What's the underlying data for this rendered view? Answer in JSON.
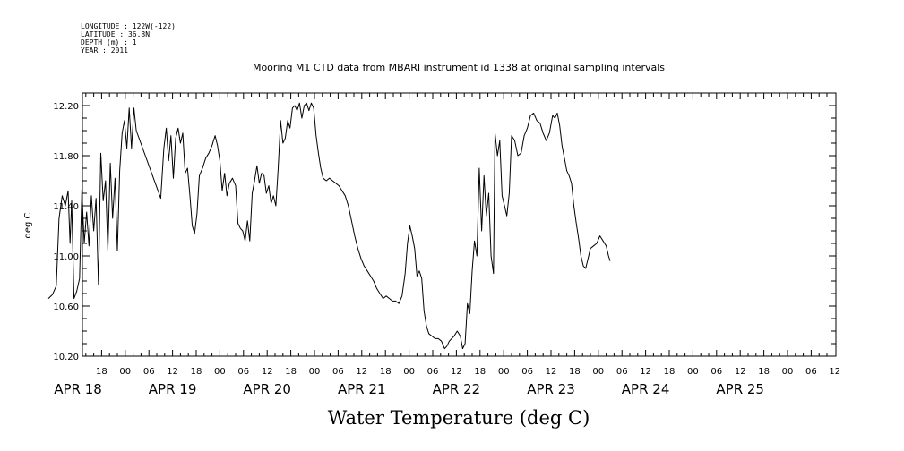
{
  "header_info": [
    "LONGITUDE : 122W(-122)",
    "LATITUDE : 36.8N",
    "DEPTH (m) : 1",
    "YEAR : 2011"
  ],
  "chart_data": {
    "type": "line",
    "title": "Mooring M1 CTD data from MBARI instrument id 1338 at original sampling intervals",
    "xlabel": "Water Temperature (deg C)",
    "ylabel": "deg C",
    "ylim": [
      10.2,
      12.3
    ],
    "yticks": [
      10.2,
      10.6,
      11.0,
      11.4,
      11.8,
      12.2
    ],
    "ytick_labels": [
      "10.20",
      "10.60",
      "11.00",
      "11.40",
      "11.80",
      "12.20"
    ],
    "x_unit": "hours since APR 18 00:00",
    "xlim": [
      -19.5,
      172.5
    ],
    "hour_ticks": [
      {
        "x": -6,
        "label": "18"
      },
      {
        "x": 0,
        "label": "00"
      },
      {
        "x": 6,
        "label": "06"
      },
      {
        "x": 12,
        "label": "12"
      },
      {
        "x": 18,
        "label": "18"
      },
      {
        "x": 24,
        "label": "00"
      },
      {
        "x": 30,
        "label": "06"
      },
      {
        "x": 36,
        "label": "12"
      },
      {
        "x": 42,
        "label": "18"
      },
      {
        "x": 48,
        "label": "00"
      },
      {
        "x": 54,
        "label": "06"
      },
      {
        "x": 60,
        "label": "12"
      },
      {
        "x": 66,
        "label": "18"
      },
      {
        "x": 72,
        "label": "00"
      },
      {
        "x": 78,
        "label": "06"
      },
      {
        "x": 84,
        "label": "12"
      },
      {
        "x": 90,
        "label": "18"
      },
      {
        "x": 96,
        "label": "00"
      },
      {
        "x": 102,
        "label": "06"
      },
      {
        "x": 108,
        "label": "12"
      },
      {
        "x": 114,
        "label": "18"
      },
      {
        "x": 120,
        "label": "00"
      },
      {
        "x": 126,
        "label": "06"
      },
      {
        "x": 132,
        "label": "12"
      },
      {
        "x": 138,
        "label": "18"
      },
      {
        "x": 144,
        "label": "00"
      },
      {
        "x": 150,
        "label": "06"
      },
      {
        "x": 156,
        "label": "12"
      },
      {
        "x": 162,
        "label": "18"
      },
      {
        "x": 168,
        "label": "00"
      },
      {
        "x": 174,
        "label": "06"
      },
      {
        "x": 180,
        "label": "12"
      }
    ],
    "date_labels": [
      {
        "x": -12,
        "label": "APR 18"
      },
      {
        "x": 12,
        "label": "APR 19"
      },
      {
        "x": 36,
        "label": "APR 20"
      },
      {
        "x": 60,
        "label": "APR 21"
      },
      {
        "x": 84,
        "label": "APR 22"
      },
      {
        "x": 108,
        "label": "APR 23"
      },
      {
        "x": 132,
        "label": "APR 24"
      },
      {
        "x": 156,
        "label": "APR 25"
      }
    ],
    "series": [
      {
        "points": [
          [
            -19.5,
            10.66
          ],
          [
            -18.5,
            10.69
          ],
          [
            -17.5,
            10.76
          ],
          [
            -16.8,
            11.3
          ],
          [
            -16.0,
            11.48
          ],
          [
            -15.2,
            11.4
          ],
          [
            -14.5,
            11.52
          ],
          [
            -14.0,
            11.1
          ],
          [
            -13.6,
            11.44
          ],
          [
            -13.0,
            10.66
          ],
          [
            -12.3,
            10.72
          ],
          [
            -11.6,
            10.82
          ],
          [
            -11.0,
            11.53
          ],
          [
            -10.4,
            11.1
          ],
          [
            -9.8,
            11.35
          ],
          [
            -9.2,
            11.08
          ],
          [
            -8.6,
            11.48
          ],
          [
            -8.0,
            11.2
          ],
          [
            -7.4,
            11.46
          ],
          [
            -6.8,
            10.77
          ],
          [
            -6.2,
            11.82
          ],
          [
            -5.6,
            11.44
          ],
          [
            -5.0,
            11.6
          ],
          [
            -4.4,
            11.04
          ],
          [
            -3.8,
            11.74
          ],
          [
            -3.2,
            11.3
          ],
          [
            -2.6,
            11.62
          ],
          [
            -2.0,
            11.04
          ],
          [
            -1.4,
            11.68
          ],
          [
            -0.8,
            11.98
          ],
          [
            -0.2,
            12.08
          ],
          [
            0.4,
            11.86
          ],
          [
            1.0,
            12.18
          ],
          [
            1.6,
            11.86
          ],
          [
            2.2,
            12.18
          ],
          [
            2.8,
            12.0
          ],
          [
            9.0,
            11.46
          ],
          [
            9.8,
            11.86
          ],
          [
            10.4,
            12.02
          ],
          [
            11.0,
            11.76
          ],
          [
            11.6,
            11.96
          ],
          [
            12.2,
            11.62
          ],
          [
            12.8,
            11.94
          ],
          [
            13.4,
            12.02
          ],
          [
            14.0,
            11.9
          ],
          [
            14.6,
            11.98
          ],
          [
            15.2,
            11.66
          ],
          [
            15.8,
            11.7
          ],
          [
            16.4,
            11.48
          ],
          [
            17.0,
            11.24
          ],
          [
            17.6,
            11.18
          ],
          [
            18.2,
            11.34
          ],
          [
            18.8,
            11.64
          ],
          [
            19.6,
            11.7
          ],
          [
            20.4,
            11.78
          ],
          [
            21.2,
            11.82
          ],
          [
            22.0,
            11.88
          ],
          [
            22.8,
            11.96
          ],
          [
            23.4,
            11.88
          ],
          [
            24.0,
            11.76
          ],
          [
            24.6,
            11.52
          ],
          [
            25.2,
            11.66
          ],
          [
            25.8,
            11.48
          ],
          [
            26.4,
            11.58
          ],
          [
            27.2,
            11.62
          ],
          [
            28.0,
            11.56
          ],
          [
            28.6,
            11.26
          ],
          [
            29.2,
            11.22
          ],
          [
            29.8,
            11.2
          ],
          [
            30.4,
            11.12
          ],
          [
            31.0,
            11.28
          ],
          [
            31.6,
            11.12
          ],
          [
            32.2,
            11.5
          ],
          [
            32.8,
            11.6
          ],
          [
            33.4,
            11.72
          ],
          [
            34.0,
            11.58
          ],
          [
            34.6,
            11.66
          ],
          [
            35.2,
            11.64
          ],
          [
            35.8,
            11.5
          ],
          [
            36.4,
            11.56
          ],
          [
            37.0,
            11.42
          ],
          [
            37.6,
            11.48
          ],
          [
            38.2,
            11.4
          ],
          [
            38.8,
            11.7
          ],
          [
            39.4,
            12.08
          ],
          [
            40.0,
            11.9
          ],
          [
            40.6,
            11.94
          ],
          [
            41.2,
            12.08
          ],
          [
            41.8,
            12.02
          ],
          [
            42.4,
            12.18
          ],
          [
            43.0,
            12.2
          ],
          [
            43.6,
            12.16
          ],
          [
            44.2,
            12.22
          ],
          [
            44.8,
            12.1
          ],
          [
            45.4,
            12.2
          ],
          [
            46.0,
            12.22
          ],
          [
            46.6,
            12.16
          ],
          [
            47.2,
            12.22
          ],
          [
            47.8,
            12.18
          ],
          [
            48.4,
            11.96
          ],
          [
            49.0,
            11.82
          ],
          [
            49.6,
            11.7
          ],
          [
            50.2,
            11.62
          ],
          [
            51.0,
            11.6
          ],
          [
            51.8,
            11.62
          ],
          [
            52.6,
            11.6
          ],
          [
            53.4,
            11.58
          ],
          [
            54.2,
            11.56
          ],
          [
            55.0,
            11.52
          ],
          [
            55.8,
            11.48
          ],
          [
            56.6,
            11.4
          ],
          [
            57.4,
            11.28
          ],
          [
            58.2,
            11.16
          ],
          [
            59.0,
            11.06
          ],
          [
            59.8,
            10.98
          ],
          [
            60.6,
            10.92
          ],
          [
            61.4,
            10.88
          ],
          [
            62.2,
            10.84
          ],
          [
            63.0,
            10.8
          ],
          [
            63.8,
            10.74
          ],
          [
            64.6,
            10.7
          ],
          [
            65.4,
            10.66
          ],
          [
            66.2,
            10.68
          ],
          [
            67.0,
            10.66
          ],
          [
            67.8,
            10.64
          ],
          [
            68.6,
            10.64
          ],
          [
            69.4,
            10.62
          ],
          [
            70.2,
            10.68
          ],
          [
            71.0,
            10.86
          ],
          [
            71.6,
            11.1
          ],
          [
            72.2,
            11.24
          ],
          [
            72.8,
            11.16
          ],
          [
            73.4,
            11.06
          ],
          [
            74.0,
            10.84
          ],
          [
            74.6,
            10.88
          ],
          [
            75.2,
            10.82
          ],
          [
            75.8,
            10.56
          ],
          [
            76.4,
            10.44
          ],
          [
            77.0,
            10.38
          ],
          [
            77.8,
            10.36
          ],
          [
            78.6,
            10.34
          ],
          [
            79.4,
            10.34
          ],
          [
            80.2,
            10.32
          ],
          [
            81.0,
            10.26
          ],
          [
            81.6,
            10.28
          ],
          [
            82.2,
            10.32
          ],
          [
            82.8,
            10.34
          ],
          [
            83.4,
            10.36
          ],
          [
            84.2,
            10.4
          ],
          [
            85.0,
            10.36
          ],
          [
            85.6,
            10.26
          ],
          [
            86.2,
            10.3
          ],
          [
            86.8,
            10.62
          ],
          [
            87.4,
            10.54
          ],
          [
            88.0,
            10.88
          ],
          [
            88.6,
            11.12
          ],
          [
            89.2,
            11.0
          ],
          [
            89.8,
            11.7
          ],
          [
            90.4,
            11.2
          ],
          [
            91.0,
            11.64
          ],
          [
            91.6,
            11.32
          ],
          [
            92.2,
            11.5
          ],
          [
            92.8,
            11.0
          ],
          [
            93.4,
            10.86
          ],
          [
            93.8,
            11.98
          ],
          [
            94.4,
            11.8
          ],
          [
            95.0,
            11.92
          ],
          [
            95.6,
            11.48
          ],
          [
            96.2,
            11.4
          ],
          [
            96.8,
            11.32
          ],
          [
            97.4,
            11.5
          ],
          [
            98.0,
            11.96
          ],
          [
            98.8,
            11.92
          ],
          [
            99.6,
            11.8
          ],
          [
            100.4,
            11.82
          ],
          [
            101.2,
            11.96
          ],
          [
            102.0,
            12.02
          ],
          [
            102.8,
            12.12
          ],
          [
            103.6,
            12.14
          ],
          [
            104.4,
            12.08
          ],
          [
            105.2,
            12.06
          ],
          [
            106.0,
            11.98
          ],
          [
            106.8,
            11.92
          ],
          [
            107.6,
            11.98
          ],
          [
            108.4,
            12.12
          ],
          [
            109.0,
            12.1
          ],
          [
            109.6,
            12.14
          ],
          [
            110.2,
            12.04
          ],
          [
            110.8,
            11.88
          ],
          [
            111.4,
            11.78
          ],
          [
            112.0,
            11.68
          ],
          [
            112.6,
            11.64
          ],
          [
            113.2,
            11.58
          ],
          [
            113.8,
            11.4
          ],
          [
            114.4,
            11.26
          ],
          [
            115.0,
            11.14
          ],
          [
            115.6,
            11.0
          ],
          [
            116.2,
            10.92
          ],
          [
            116.8,
            10.9
          ],
          [
            117.4,
            10.98
          ],
          [
            118.0,
            11.06
          ],
          [
            118.8,
            11.08
          ],
          [
            119.6,
            11.1
          ],
          [
            120.4,
            11.16
          ],
          [
            121.2,
            11.12
          ],
          [
            122.0,
            11.08
          ],
          [
            122.6,
            11.0
          ],
          [
            123.0,
            10.96
          ]
        ]
      }
    ],
    "annotations": [],
    "grid": false,
    "legend": "none"
  }
}
